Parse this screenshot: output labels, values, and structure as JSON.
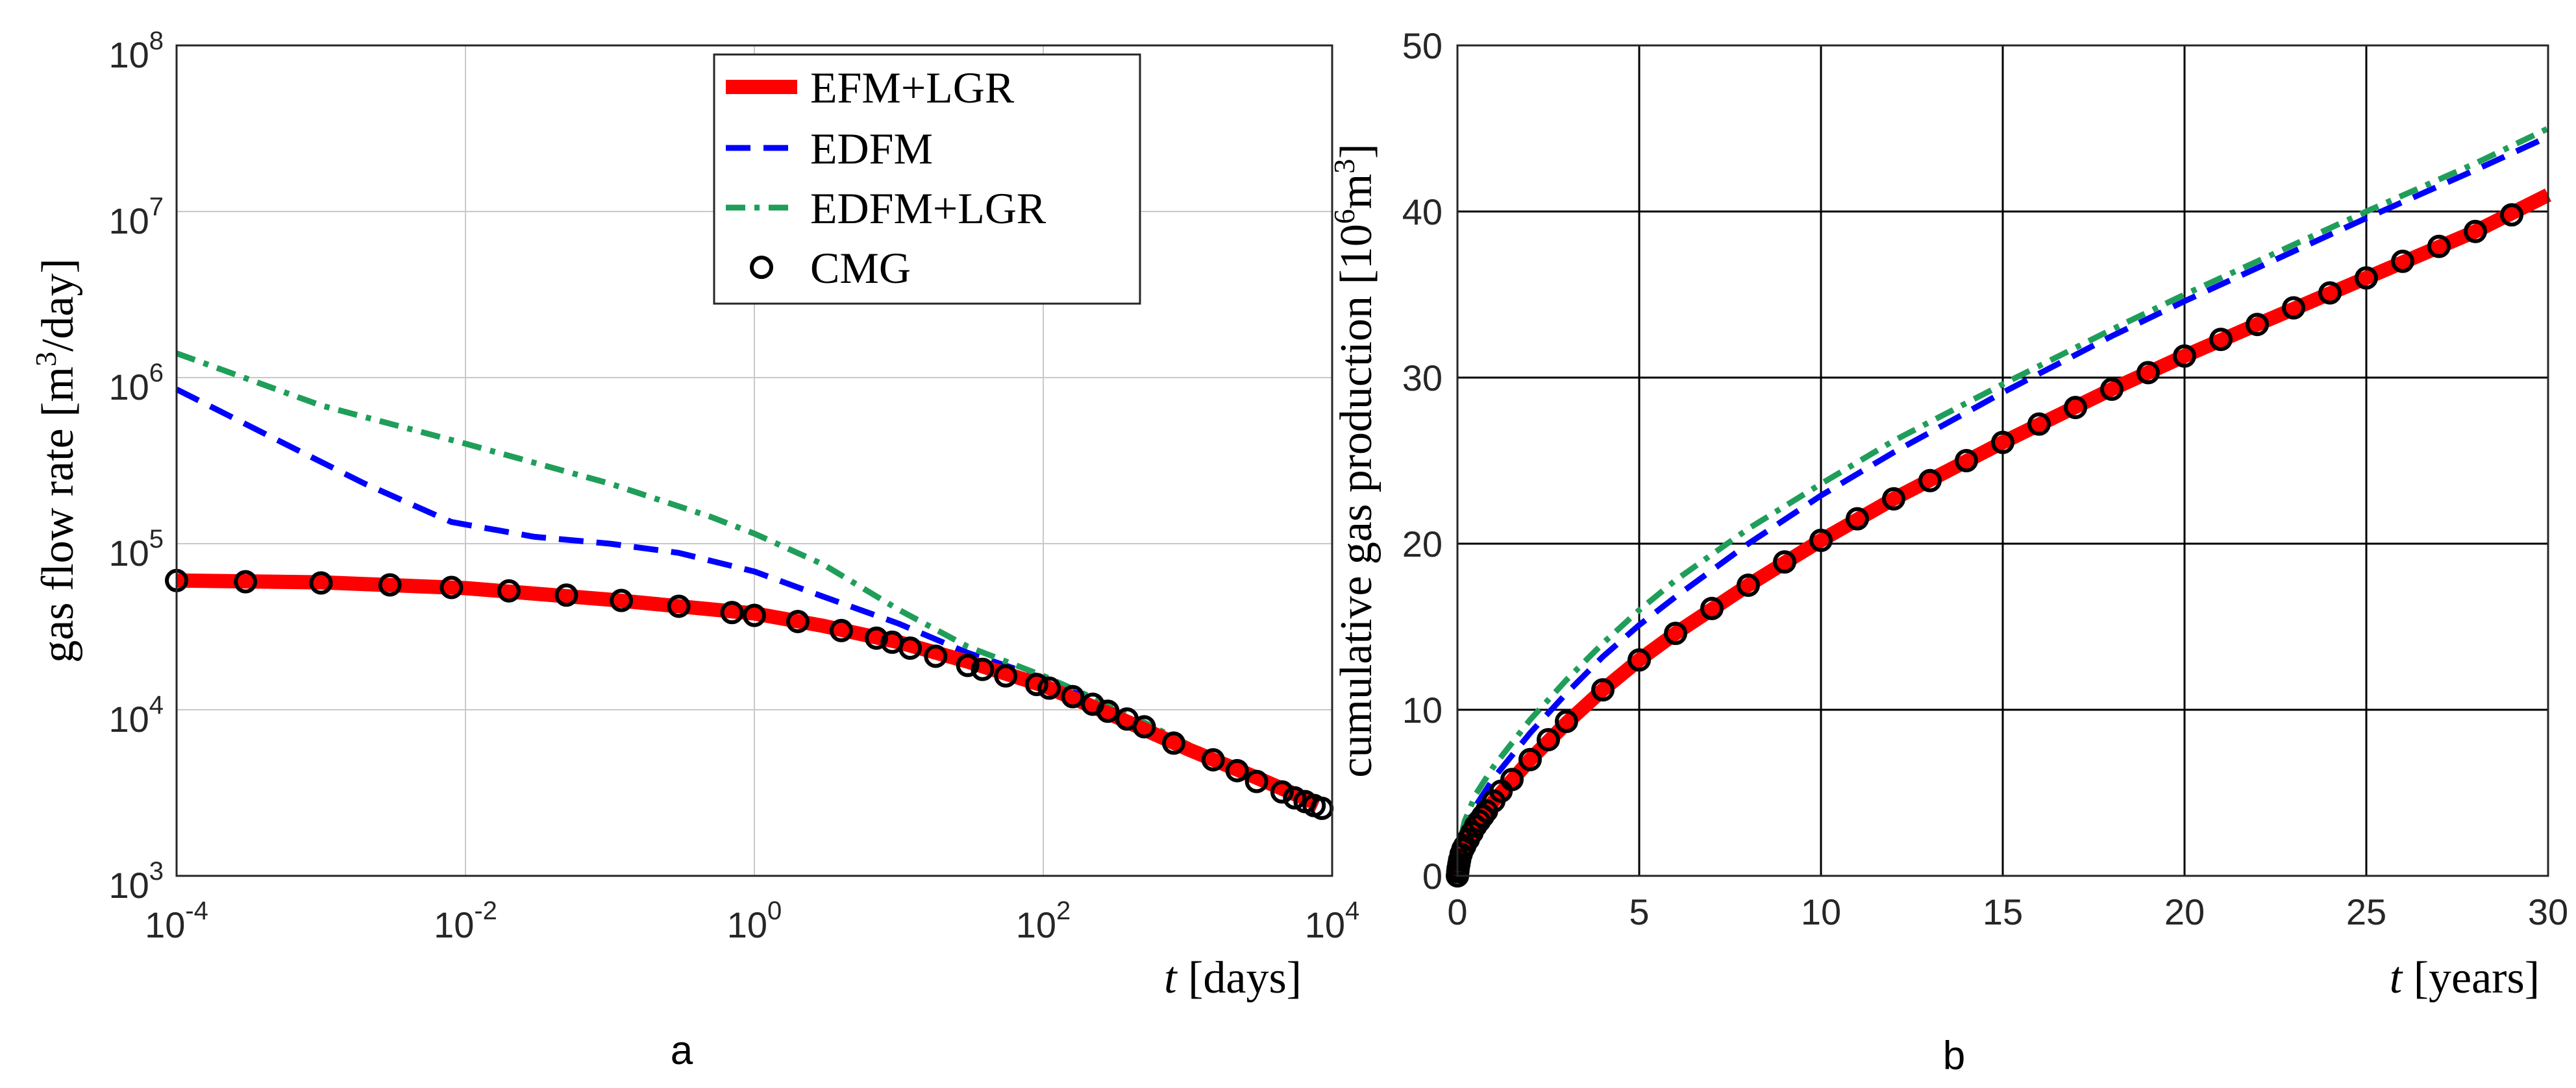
{
  "colors": {
    "efm_lgr": "#ff0000",
    "edfm": "#0000ff",
    "edfm_lgr": "#1f9e5a",
    "cmg": "#000000",
    "grid_a": "#c8c8c8",
    "grid_b": "#000000"
  },
  "legend": [
    {
      "key": "efm",
      "label": "EFM+LGR"
    },
    {
      "key": "edfm",
      "label": "EDFM"
    },
    {
      "key": "edfmlgr",
      "label": "EDFM+LGR"
    },
    {
      "key": "cmg",
      "label": "CMG"
    }
  ],
  "chart_data": [
    {
      "panel": "a",
      "type": "line",
      "xscale": "log",
      "yscale": "log",
      "xlim": [
        0.0001,
        10000
      ],
      "ylim": [
        1000,
        100000000
      ],
      "x_ticks": [
        {
          "base": "10",
          "exp": "-4",
          "v": 0.0001
        },
        {
          "base": "10",
          "exp": "-2",
          "v": 0.01
        },
        {
          "base": "10",
          "exp": "0",
          "v": 1
        },
        {
          "base": "10",
          "exp": "2",
          "v": 100
        },
        {
          "base": "10",
          "exp": "4",
          "v": 10000
        }
      ],
      "y_ticks": [
        {
          "base": "10",
          "exp": "3",
          "v": 1000
        },
        {
          "base": "10",
          "exp": "4",
          "v": 10000
        },
        {
          "base": "10",
          "exp": "5",
          "v": 100000
        },
        {
          "base": "10",
          "exp": "6",
          "v": 1000000
        },
        {
          "base": "10",
          "exp": "7",
          "v": 10000000
        },
        {
          "base": "10",
          "exp": "8",
          "v": 100000000
        }
      ],
      "xlabel": {
        "var": "t",
        "unit": " [days]"
      },
      "ylabel": {
        "pre": "gas flow rate [m",
        "sup": "3",
        "post": "/day]"
      },
      "grid": true,
      "legend_position": "top-right",
      "series": [
        {
          "name": "EFM+LGR",
          "style": "solid",
          "x": [
            0.0001,
            0.001,
            0.01,
            0.1,
            1,
            3,
            10,
            30,
            100,
            300,
            1000,
            3000,
            8000
          ],
          "y": [
            60000,
            58500,
            54000,
            46000,
            38000,
            32000,
            25500,
            19500,
            14000,
            9300,
            5800,
            3900,
            2700
          ]
        },
        {
          "name": "EDFM",
          "style": "dashed",
          "x": [
            0.0001,
            0.0005,
            0.002,
            0.008,
            0.03,
            0.1,
            0.3,
            1,
            3,
            10,
            30,
            100,
            300,
            1000,
            3000,
            8000
          ],
          "y": [
            850000,
            420000,
            230000,
            135000,
            110000,
            100000,
            88000,
            68000,
            48000,
            33000,
            22000,
            15500,
            10000,
            6000,
            4000,
            2700
          ]
        },
        {
          "name": "EDFM+LGR",
          "style": "dashdot",
          "x": [
            0.0001,
            0.001,
            0.01,
            0.1,
            0.5,
            1,
            3,
            10,
            30,
            100,
            300,
            1000,
            3000,
            8000
          ],
          "y": [
            1400000,
            680000,
            400000,
            230000,
            145000,
            115000,
            75000,
            40000,
            24000,
            16000,
            10500,
            6200,
            4100,
            2700
          ]
        },
        {
          "name": "CMG",
          "style": "markers",
          "x": [
            0.0001,
            0.0003,
            0.001,
            0.003,
            0.008,
            0.02,
            0.05,
            0.12,
            0.3,
            0.7,
            1,
            2,
            4,
            7,
            9,
            12,
            18,
            30,
            38,
            55,
            90,
            110,
            160,
            220,
            280,
            380,
            500,
            800,
            1500,
            2200,
            3000,
            4500,
            5500,
            6500,
            7500,
            8500
          ],
          "y": [
            60000,
            59000,
            58000,
            56500,
            54500,
            52000,
            49000,
            45500,
            42000,
            38500,
            37000,
            34000,
            30000,
            27000,
            25500,
            23500,
            21000,
            18500,
            17500,
            16000,
            14200,
            13500,
            12000,
            10800,
            9800,
            8800,
            7900,
            6300,
            5000,
            4300,
            3700,
            3200,
            2950,
            2800,
            2650,
            2550
          ]
        }
      ]
    },
    {
      "panel": "b",
      "type": "line",
      "xlim": [
        0,
        30
      ],
      "ylim": [
        0,
        50
      ],
      "x_ticks": [
        0,
        5,
        10,
        15,
        20,
        25,
        30
      ],
      "y_ticks": [
        0,
        10,
        20,
        30,
        40,
        50
      ],
      "xlabel": {
        "var": "t",
        "unit": " [years]"
      },
      "ylabel": {
        "pre": "cumulative gas production [10",
        "sup": "6",
        "post": "m",
        "sup2": "3",
        "end": "]"
      },
      "grid": true,
      "series": [
        {
          "name": "EFM+LGR",
          "style": "solid",
          "x": [
            0,
            0.05,
            0.2,
            0.5,
            1,
            2,
            3,
            4,
            5,
            6,
            8,
            10,
            12,
            15,
            18,
            20,
            22,
            25,
            28,
            30
          ],
          "y": [
            0,
            0.9,
            1.8,
            3.0,
            4.5,
            7.0,
            9.2,
            11.2,
            13.0,
            14.6,
            17.5,
            20.2,
            22.7,
            26.1,
            29.3,
            31.3,
            33.2,
            36.0,
            38.8,
            41.0
          ]
        },
        {
          "name": "EDFM",
          "style": "dashed",
          "x": [
            0,
            0.05,
            0.2,
            0.5,
            1,
            2,
            3,
            4,
            5,
            6,
            8,
            10,
            12,
            15,
            18,
            20,
            22,
            25,
            28,
            30
          ],
          "y": [
            0,
            1.5,
            2.8,
            4.2,
            5.9,
            8.6,
            11.0,
            13.2,
            15.1,
            16.8,
            20.0,
            22.9,
            25.5,
            29.1,
            32.5,
            34.6,
            36.6,
            39.6,
            42.5,
            44.5
          ]
        },
        {
          "name": "EDFM+LGR",
          "style": "dashdot",
          "x": [
            0,
            0.05,
            0.2,
            0.5,
            1,
            2,
            3,
            4,
            5,
            6,
            8,
            10,
            12,
            15,
            18,
            20,
            22,
            25,
            28,
            30
          ],
          "y": [
            0,
            1.9,
            3.3,
            4.9,
            6.6,
            9.4,
            11.8,
            14.0,
            16.0,
            17.8,
            20.9,
            23.6,
            26.2,
            29.6,
            32.9,
            35.0,
            37.0,
            40.0,
            42.9,
            45.0
          ]
        },
        {
          "name": "CMG",
          "style": "markers",
          "x": [
            0,
            0.01,
            0.02,
            0.04,
            0.06,
            0.1,
            0.15,
            0.2,
            0.3,
            0.4,
            0.5,
            0.6,
            0.7,
            0.8,
            1.0,
            1.2,
            1.5,
            2.0,
            2.5,
            3.0,
            4.0,
            5,
            6,
            7,
            8,
            9,
            10,
            11,
            12,
            13,
            14,
            15,
            16,
            17,
            18,
            19,
            20,
            21,
            22,
            23,
            24,
            25,
            26,
            27,
            28,
            29
          ],
          "y": [
            0,
            0.25,
            0.45,
            0.7,
            0.95,
            1.3,
            1.6,
            1.8,
            2.2,
            2.6,
            3.0,
            3.3,
            3.6,
            3.9,
            4.5,
            5.1,
            5.8,
            7.0,
            8.2,
            9.3,
            11.2,
            13.0,
            14.6,
            16.1,
            17.5,
            18.9,
            20.2,
            21.5,
            22.7,
            23.8,
            25.0,
            26.1,
            27.2,
            28.2,
            29.3,
            30.3,
            31.3,
            32.3,
            33.2,
            34.2,
            35.1,
            36.0,
            37.0,
            37.9,
            38.8,
            39.8
          ]
        }
      ]
    }
  ],
  "panel_labels": {
    "a": "a",
    "b": "b"
  }
}
